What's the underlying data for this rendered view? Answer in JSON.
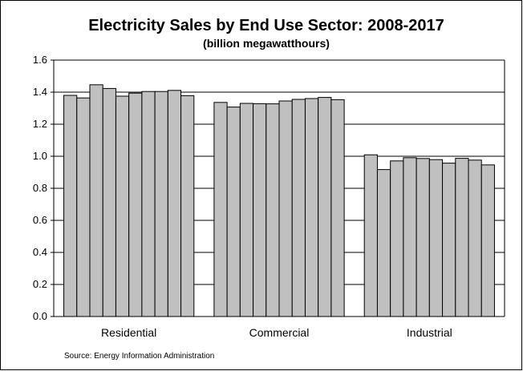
{
  "chart_data": {
    "type": "bar",
    "title": "Electricity Sales by End Use Sector:  2008-2017",
    "subtitle": "(billion megawatthours)",
    "xlabel": "",
    "ylabel": "",
    "categories": [
      "Residential",
      "Commercial",
      "Industrial"
    ],
    "series": [
      {
        "values": [
          1.38,
          1.336,
          1.009
        ]
      },
      {
        "values": [
          1.364,
          1.307,
          0.917
        ]
      },
      {
        "values": [
          1.446,
          1.33,
          0.971
        ]
      },
      {
        "values": [
          1.423,
          1.328,
          0.991
        ]
      },
      {
        "values": [
          1.375,
          1.327,
          0.986
        ]
      },
      {
        "values": [
          1.394,
          1.345,
          0.979
        ]
      },
      {
        "values": [
          1.404,
          1.355,
          0.957
        ]
      },
      {
        "values": [
          1.404,
          1.36,
          0.987
        ]
      },
      {
        "values": [
          1.411,
          1.367,
          0.976
        ]
      },
      {
        "values": [
          1.378,
          1.353,
          0.946
        ]
      }
    ],
    "ylim": [
      0,
      1.6
    ],
    "yticks": [
      "0.0",
      "0.2",
      "0.4",
      "0.6",
      "0.8",
      "1.0",
      "1.2",
      "1.4",
      "1.6"
    ],
    "grid": true,
    "legend": "none",
    "bar_color": "#c0c0c0",
    "source": "Source: Energy Information Administration"
  }
}
